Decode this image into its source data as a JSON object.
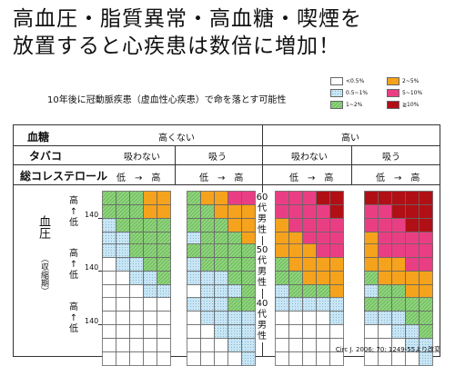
{
  "title_line1": "高血圧・脂質異常・高血糖・喫煙を",
  "title_line2": "放置すると心疾患は数倍に増加！",
  "subtitle": "10年後に冠動脈疾患（虚血性心疾患）で命を落とす可能性",
  "legend": [
    {
      "label": "<0.5%",
      "color": "#ffffff",
      "pattern": "none"
    },
    {
      "label": "0.5~1%",
      "color": "#c8e6f5",
      "pattern": "dots"
    },
    {
      "label": "1~2%",
      "color": "#8ed47c",
      "pattern": "hatch"
    },
    {
      "label": "2~5%",
      "color": "#f5a21c",
      "pattern": "none"
    },
    {
      "label": "5~10%",
      "color": "#ea3e84",
      "pattern": "none"
    },
    {
      "label": "≧10%",
      "color": "#b10f16",
      "pattern": "none"
    }
  ],
  "header": {
    "blood_sugar_label": "血糖",
    "not_high": "高くない",
    "high": "高い",
    "tobacco_label": "タバコ",
    "no_smoke": "吸わない",
    "smoke": "吸う",
    "chol_label": "総コレステロール",
    "chol_scale": "低　→　高"
  },
  "side": {
    "bp_label": "血圧",
    "bp_sub": "（収縮期）",
    "arrow_top": "高",
    "arrow_mid": "↑",
    "arrow_bot": "低",
    "bp_value": "140"
  },
  "ages": [
    {
      "num": "60",
      "dai": "代",
      "sex1": "男",
      "sex2": "性"
    },
    {
      "num": "50",
      "dai": "代",
      "sex1": "男",
      "sex2": "性"
    },
    {
      "num": "40",
      "dai": "代",
      "sex1": "男",
      "sex2": "性"
    }
  ],
  "citation": "Circ J. 2006; 70: 1249-55より改変",
  "grids": [
    [
      [
        "GGGOO",
        "GGGOO",
        "BGGGG",
        "BBGGG",
        "BBBGG"
      ],
      [
        "GOOPP",
        "GGOOO",
        "GGGOO",
        "BGGGO",
        "BBGGG"
      ],
      [
        "PPPRR",
        "PPPPR",
        "OPPPP",
        "OOPPP",
        "OOOPP"
      ],
      [
        "RRRRR",
        "PPRRR",
        "PPPRR",
        "OPPPP",
        "OOPPP"
      ]
    ],
    [
      [
        "BBGGG",
        "WBBGG",
        "WWBBG",
        "WWWBB",
        "WWWWB"
      ],
      [
        "GGGGG",
        "BGGGG",
        "BBBGG",
        "WBBBG",
        "WWBBB"
      ],
      [
        "OOOPP",
        "GOOOO",
        "GGOOO",
        "BGGGO",
        "BBGGG"
      ],
      [
        "OPPPP",
        "OOOPP",
        "GOOOO",
        "BGGOO",
        "BBGGG"
      ]
    ],
    [
      [
        "WWWWW",
        "WWWWW",
        "WWWWW",
        "WWWWW",
        "WWWWW"
      ],
      [
        "BBBGG",
        "WBBBB",
        "WWBBB",
        "WWWBB",
        "WWWWB"
      ],
      [
        "BBBBB",
        "WWWWB",
        "WWWWW",
        "WWWWW",
        "WWWWW"
      ],
      [
        "GGGGG",
        "BBBGG",
        "WWBBG",
        "WWWBB",
        "WWWWB"
      ]
    ]
  ]
}
